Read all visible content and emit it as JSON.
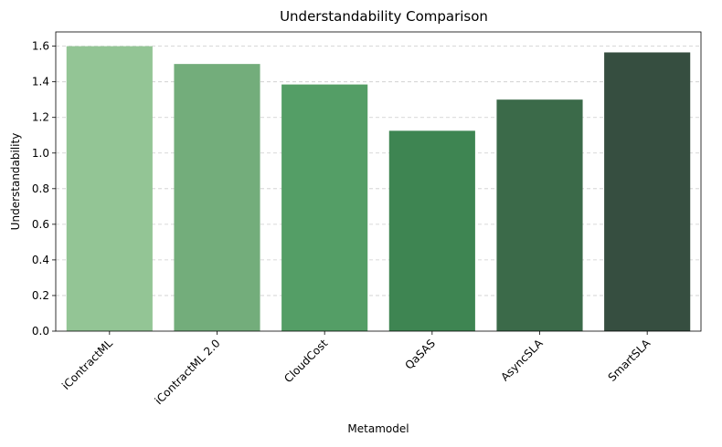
{
  "chart_data": {
    "type": "bar",
    "title": "Understandability Comparison",
    "xlabel": "Metamodel",
    "ylabel": "Understandability",
    "categories": [
      "iContractML",
      "iContractML 2.0",
      "CloudCost",
      "QaSAS",
      "AsyncSLA",
      "SmartSLA"
    ],
    "values": [
      1.6,
      1.5,
      1.385,
      1.125,
      1.3,
      1.565
    ],
    "colors": [
      "#93c595",
      "#73ad7b",
      "#549e66",
      "#3e8552",
      "#3b6a49",
      "#364e40"
    ],
    "ylim": [
      0,
      1.68
    ],
    "yticks": [
      "0.0",
      "0.2",
      "0.4",
      "0.6",
      "0.8",
      "1.0",
      "1.2",
      "1.4",
      "1.6"
    ],
    "grid": "y-dashed",
    "legend": "none"
  }
}
